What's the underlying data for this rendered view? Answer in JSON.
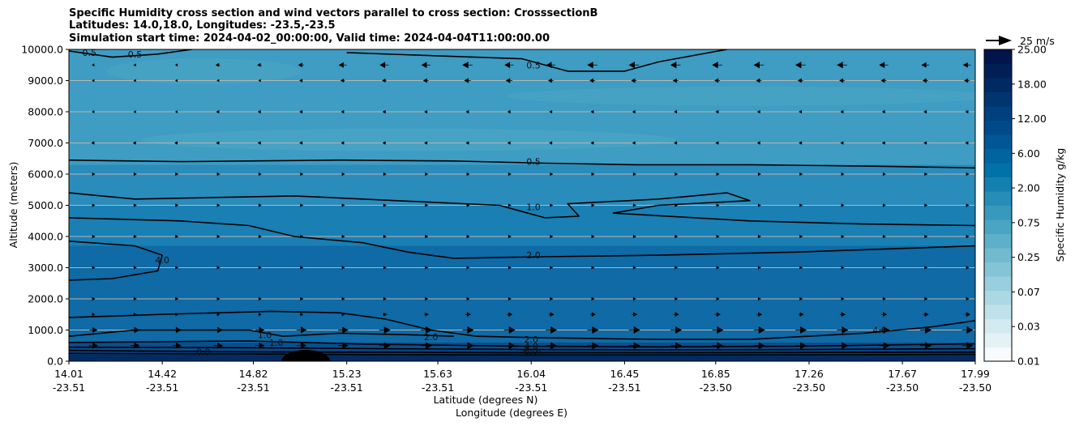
{
  "title_lines": [
    "Specific Humidity cross section and wind vectors parallel to cross section: CrosssectionB",
    "Latitudes: 14.0,18.0, Longitudes: -23.5,-23.5",
    "Simulation start time: 2024-04-02_00:00:00, Valid time: 2024-04-04T11:00:00.00"
  ],
  "chart_data": {
    "type": "heatmap",
    "subtype": "contour cross-section with wind vectors",
    "xlabel": "Latitude (degrees N)",
    "xlabel2": "Longitude (degrees E)",
    "ylabel": "Altitude (meters)",
    "ylim": [
      0,
      10000
    ],
    "y_ticks": [
      "0.0",
      "1000.0",
      "2000.0",
      "3000.0",
      "4000.0",
      "5000.0",
      "6000.0",
      "7000.0",
      "8000.0",
      "9000.0",
      "10000.0"
    ],
    "y_tick_values": [
      0,
      1000,
      2000,
      3000,
      4000,
      5000,
      6000,
      7000,
      8000,
      9000,
      10000
    ],
    "x_ticks_lat": [
      "14.01",
      "14.42",
      "14.82",
      "15.23",
      "15.63",
      "16.04",
      "16.45",
      "16.85",
      "17.26",
      "17.67",
      "17.99"
    ],
    "x_ticks_lon": [
      "-23.51",
      "-23.51",
      "-23.51",
      "-23.51",
      "-23.51",
      "-23.51",
      "-23.51",
      "-23.50",
      "-23.50",
      "-23.50",
      "-23.50"
    ],
    "x_tick_values": [
      14.01,
      14.42,
      14.82,
      15.23,
      15.63,
      16.04,
      16.45,
      16.85,
      17.26,
      17.67,
      17.99
    ],
    "xlim": [
      14.01,
      17.99
    ],
    "grid": "horizontal",
    "colorbar": {
      "label": "Specific Humidity g/kg",
      "tick_labels": [
        "0.01",
        "0.03",
        "0.07",
        "0.25",
        "0.75",
        "2.00",
        "6.00",
        "12.00",
        "18.00",
        "25.00"
      ],
      "colors": [
        "#f7fbfd",
        "#e4f2f6",
        "#d2eaf0",
        "#bfe1ea",
        "#acd8e3",
        "#98cedd",
        "#84c4d6",
        "#71bad0",
        "#5eb0c9",
        "#4aa5c3",
        "#3899bd",
        "#258db6",
        "#1380af",
        "#0072a8",
        "#0064a0",
        "#005796",
        "#004a8b",
        "#00407f",
        "#003570",
        "#002a62",
        "#002055",
        "#00154a"
      ]
    },
    "quiver_key": "25 m/s",
    "contour_labels": [
      {
        "text": "0.5",
        "x": 14.1,
        "y": 9900
      },
      {
        "text": "0.5",
        "x": 14.3,
        "y": 9850
      },
      {
        "text": "0.5",
        "x": 16.05,
        "y": 9500
      },
      {
        "text": "0.5",
        "x": 16.05,
        "y": 6400
      },
      {
        "text": "1.0",
        "x": 16.05,
        "y": 4950
      },
      {
        "text": "2.0",
        "x": 16.05,
        "y": 3400
      },
      {
        "text": "4.0",
        "x": 14.42,
        "y": 3250
      },
      {
        "text": "1.0",
        "x": 14.87,
        "y": 850
      },
      {
        "text": "1.0",
        "x": 14.92,
        "y": 600
      },
      {
        "text": "2.0",
        "x": 15.6,
        "y": 780
      },
      {
        "text": "8.0",
        "x": 14.6,
        "y": 300
      },
      {
        "text": "2.0",
        "x": 16.04,
        "y": 700
      },
      {
        "text": "4.0",
        "x": 16.04,
        "y": 480
      },
      {
        "text": "6.0",
        "x": 16.04,
        "y": 330
      },
      {
        "text": "12.0",
        "x": 16.04,
        "y": 270
      },
      {
        "text": "4.0",
        "x": 17.57,
        "y": 1000
      }
    ],
    "fill_bands": [
      {
        "level": "4.00-6.00",
        "color": "#0f6aa5",
        "y_bottom": 600,
        "y_top": 3700
      },
      {
        "level": "2.00-4.00",
        "color": "#1a7fb3",
        "y_bottom": 3700,
        "y_top": 5000
      },
      {
        "level": "1.00-2.00",
        "color": "#2a8cbb",
        "y_bottom": 5000,
        "y_top": 6300
      },
      {
        "level": "0.50-1.00",
        "color": "#3f9cc2",
        "y_bottom": 6300,
        "y_top": 10000
      }
    ],
    "contours": [
      {
        "level": "0.5",
        "points": [
          [
            14.01,
            6450
          ],
          [
            14.5,
            6400
          ],
          [
            15.2,
            6450
          ],
          [
            15.7,
            6420
          ],
          [
            16.1,
            6350
          ],
          [
            16.5,
            6300
          ],
          [
            17.0,
            6300
          ],
          [
            17.6,
            6250
          ],
          [
            17.99,
            6200
          ]
        ]
      },
      {
        "level": "1.0",
        "points": [
          [
            14.01,
            5400
          ],
          [
            14.3,
            5200
          ],
          [
            15.0,
            5300
          ],
          [
            15.6,
            5100
          ],
          [
            15.9,
            5000
          ],
          [
            16.1,
            4600
          ],
          [
            16.25,
            4650
          ],
          [
            16.2,
            5050
          ],
          [
            16.6,
            5200
          ],
          [
            16.9,
            5400
          ],
          [
            17.0,
            5150
          ],
          [
            16.6,
            5000
          ],
          [
            16.4,
            4750
          ],
          [
            17.0,
            4500
          ],
          [
            17.5,
            4400
          ],
          [
            17.99,
            4350
          ]
        ]
      },
      {
        "level": "2.0",
        "points": [
          [
            14.01,
            4600
          ],
          [
            14.5,
            4500
          ],
          [
            14.8,
            4350
          ],
          [
            15.0,
            4000
          ],
          [
            15.3,
            3800
          ],
          [
            15.5,
            3500
          ],
          [
            15.7,
            3300
          ],
          [
            16.1,
            3350
          ],
          [
            16.6,
            3400
          ],
          [
            17.2,
            3500
          ],
          [
            17.6,
            3600
          ],
          [
            17.99,
            3700
          ]
        ]
      },
      {
        "level": "4.0",
        "points": [
          [
            14.01,
            3850
          ],
          [
            14.3,
            3700
          ],
          [
            14.42,
            3400
          ],
          [
            14.4,
            2900
          ],
          [
            14.2,
            2650
          ],
          [
            14.01,
            2600
          ]
        ]
      },
      {
        "level": "2.0",
        "points": [
          [
            14.01,
            1400
          ],
          [
            14.4,
            1500
          ],
          [
            14.9,
            1600
          ],
          [
            15.2,
            1550
          ],
          [
            15.4,
            1350
          ],
          [
            15.6,
            1000
          ],
          [
            15.8,
            800
          ],
          [
            16.1,
            750
          ],
          [
            16.6,
            700
          ],
          [
            17.0,
            700
          ],
          [
            17.5,
            900
          ],
          [
            17.8,
            1100
          ],
          [
            17.99,
            1300
          ]
        ]
      },
      {
        "level": "1.0",
        "points": [
          [
            14.01,
            800
          ],
          [
            14.3,
            1000
          ],
          [
            14.8,
            1000
          ],
          [
            14.95,
            800
          ],
          [
            15.2,
            900
          ],
          [
            15.5,
            850
          ],
          [
            15.7,
            800
          ]
        ]
      },
      {
        "level": "4.0",
        "points": [
          [
            14.01,
            600
          ],
          [
            14.8,
            650
          ],
          [
            15.3,
            550
          ],
          [
            16.0,
            480
          ],
          [
            16.6,
            460
          ],
          [
            17.2,
            480
          ],
          [
            17.6,
            520
          ],
          [
            17.99,
            560
          ]
        ]
      },
      {
        "level": "6.0",
        "points": [
          [
            14.01,
            450
          ],
          [
            14.8,
            430
          ],
          [
            15.4,
            400
          ],
          [
            16.0,
            380
          ],
          [
            16.6,
            370
          ],
          [
            17.3,
            380
          ],
          [
            17.99,
            400
          ]
        ]
      },
      {
        "level": "8.0",
        "points": [
          [
            14.01,
            350
          ],
          [
            14.6,
            310
          ],
          [
            15.2,
            290
          ],
          [
            16.0,
            270
          ],
          [
            16.7,
            270
          ],
          [
            17.4,
            280
          ],
          [
            17.99,
            290
          ]
        ]
      },
      {
        "level": "12.0",
        "points": [
          [
            14.01,
            250
          ],
          [
            14.8,
            230
          ],
          [
            15.4,
            210
          ],
          [
            16.0,
            200
          ],
          [
            16.8,
            200
          ],
          [
            17.5,
            210
          ],
          [
            17.99,
            220
          ]
        ]
      },
      {
        "level": "0.5",
        "points": [
          [
            15.23,
            9900
          ],
          [
            15.6,
            9800
          ],
          [
            16.0,
            9700
          ],
          [
            16.2,
            9300
          ],
          [
            16.45,
            9300
          ],
          [
            16.6,
            9600
          ],
          [
            16.9,
            10000
          ]
        ]
      },
      {
        "level": "0.5",
        "points": [
          [
            14.01,
            9950
          ],
          [
            14.2,
            9750
          ],
          [
            14.4,
            9850
          ],
          [
            14.55,
            10000
          ]
        ]
      }
    ],
    "wind_rows": [
      {
        "altitude": 9500,
        "direction": "left",
        "strength": [
          0,
          0,
          0,
          0.2,
          0.2,
          0.3,
          0.5,
          0.6,
          0.6,
          0.7,
          0.6,
          0.6,
          0.7,
          0.7,
          0.7,
          0.7,
          0.7,
          0.7,
          0.7,
          0.6,
          0.5,
          0.5
        ]
      },
      {
        "altitude": 9000,
        "direction": "left",
        "strength": [
          0,
          0,
          0,
          0,
          0,
          0.1,
          0.2,
          0.2,
          0.3,
          0.4,
          0.4,
          0.3,
          0.3,
          0.3,
          0.3,
          0.3,
          0.3,
          0.3,
          0.3,
          0.3,
          0.3,
          0.3
        ]
      },
      {
        "altitude": 8000,
        "direction": "left",
        "strength": [
          0,
          0,
          0,
          0.1,
          0.1,
          0.1,
          0.1,
          0.1,
          0.1,
          0.1,
          0.1,
          0.1,
          0.1,
          0.1,
          0.1,
          0.1,
          0.1,
          0.1,
          0.1,
          0.1,
          0.1,
          0.1
        ]
      },
      {
        "altitude": 7000,
        "direction": "left",
        "strength": [
          0.1,
          0.1,
          0.1,
          0.1,
          0.1,
          0.1,
          0.1,
          0.1,
          0.1,
          0.1,
          0.1,
          0.1,
          0.1,
          0.1,
          0.1,
          0.1,
          0.1,
          0.1,
          0.1,
          0.1,
          0.1,
          0.1
        ]
      },
      {
        "altitude": 6000,
        "direction": "right",
        "strength": [
          0.1,
          0.1,
          0.1,
          0.1,
          0.1,
          0.1,
          0.1,
          0.1,
          0.1,
          0.1,
          0.1,
          0.1,
          0.1,
          0.1,
          0.1,
          0.1,
          0.1,
          0.1,
          0.1,
          0.1,
          0.1,
          0.1
        ]
      },
      {
        "altitude": 5000,
        "direction": "right",
        "strength": [
          0.1,
          0.1,
          0.1,
          0.1,
          0.1,
          0.1,
          0.1,
          0.1,
          0.1,
          0.1,
          0.1,
          0.1,
          0.1,
          0.1,
          0.1,
          0.1,
          0.1,
          0.1,
          0.1,
          0.1,
          0.1,
          0.1
        ]
      },
      {
        "altitude": 4000,
        "direction": "right",
        "strength": [
          0.1,
          0.1,
          0.1,
          0.1,
          0.1,
          0.1,
          0.1,
          0.1,
          0.1,
          0.1,
          0.1,
          0.1,
          0.1,
          0.1,
          0.1,
          0.1,
          0.1,
          0.1,
          0.1,
          0.1,
          0.1,
          0.1
        ]
      },
      {
        "altitude": 3000,
        "direction": "right",
        "strength": [
          0.1,
          0.1,
          0.1,
          0.1,
          0.1,
          0.1,
          0.1,
          0.1,
          0.1,
          0.1,
          0.1,
          0.1,
          0.1,
          0.1,
          0.1,
          0.1,
          0.1,
          0.1,
          0.1,
          0.1,
          0.1,
          0.1
        ]
      },
      {
        "altitude": 2000,
        "direction": "right",
        "strength": [
          0.1,
          0.1,
          0.1,
          0.1,
          0.1,
          0.1,
          0.1,
          0.1,
          0.1,
          0.1,
          0.1,
          0.1,
          0.1,
          0.1,
          0.1,
          0.1,
          0.1,
          0.1,
          0.1,
          0.1,
          0.1,
          0.1
        ]
      },
      {
        "altitude": 1500,
        "direction": "right",
        "strength": [
          0.1,
          0.1,
          0.1,
          0.1,
          0.1,
          0.1,
          0.1,
          0.2,
          0.2,
          0.3,
          0.3,
          0.3,
          0.3,
          0.3,
          0.3,
          0.3,
          0.3,
          0.3,
          0.3,
          0.3,
          0.3,
          0.3
        ]
      },
      {
        "altitude": 1000,
        "direction": "right",
        "strength": [
          0.5,
          0.6,
          0.6,
          0.6,
          0.6,
          0.7,
          0.7,
          0.8,
          0.8,
          0.8,
          0.8,
          0.8,
          0.8,
          0.8,
          0.8,
          0.8,
          0.8,
          0.8,
          0.8,
          0.8,
          0.8,
          0.8
        ]
      },
      {
        "altitude": 500,
        "direction": "right",
        "strength": [
          0.6,
          0.6,
          0.6,
          0.6,
          0.6,
          0.7,
          0.7,
          0.8,
          0.8,
          0.8,
          0.8,
          0.8,
          0.8,
          0.8,
          0.8,
          0.8,
          0.8,
          0.8,
          0.8,
          0.8,
          0.8,
          0.8
        ]
      }
    ]
  }
}
